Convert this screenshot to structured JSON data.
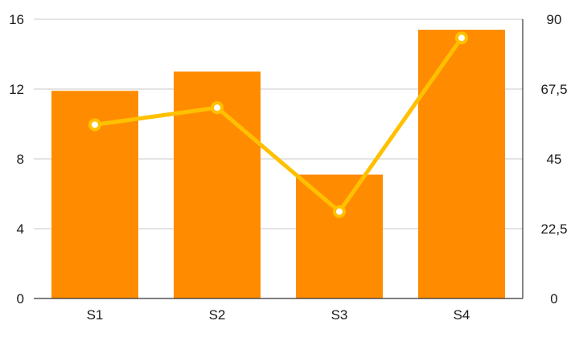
{
  "chart_data": {
    "type": "bar",
    "categories": [
      "S1",
      "S2",
      "S3",
      "S4"
    ],
    "series": [
      {
        "type": "bar",
        "axis": "left",
        "values": [
          11.9,
          13.0,
          7.1,
          15.4
        ]
      },
      {
        "type": "line",
        "axis": "right",
        "values": [
          56,
          61.5,
          28,
          84
        ]
      }
    ],
    "y_left": {
      "min": 0,
      "max": 16,
      "ticks": [
        "0",
        "4",
        "8",
        "12",
        "16"
      ]
    },
    "y_right": {
      "min": 0,
      "max": 90,
      "ticks": [
        "0",
        "22,5",
        "45",
        "67,5",
        "90"
      ]
    },
    "grid": true,
    "colors": {
      "bar": "#ff8c00",
      "line": "#ffc000",
      "marker_fill": "#ffffff"
    }
  }
}
